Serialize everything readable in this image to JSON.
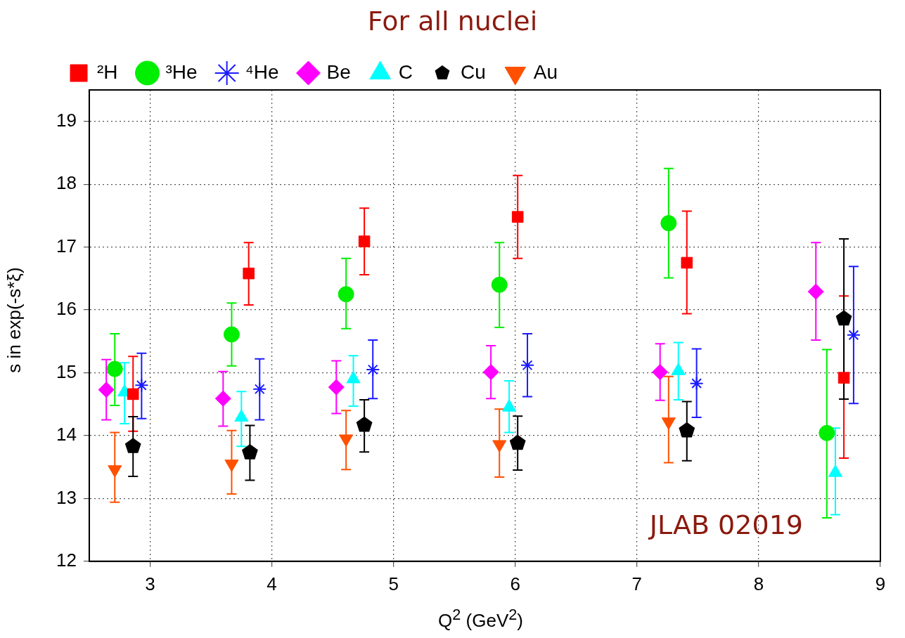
{
  "chart_data": {
    "type": "scatter",
    "title": "For all nuclei",
    "xlabel": "Q$^{2}$ (GeV$^{2}$)",
    "ylabel": "s in exp(-s*ξ)",
    "xlim": [
      2.5,
      9
    ],
    "ylim": [
      12,
      19.5
    ],
    "xticks": [
      3,
      4,
      5,
      6,
      7,
      8,
      9
    ],
    "yticks": [
      12,
      13,
      14,
      15,
      16,
      17,
      18,
      19
    ],
    "grid": true,
    "legend": "top left",
    "annotations": [
      "JLAB 02019"
    ],
    "series": [
      {
        "name": "²H",
        "color": "#ff0000",
        "marker": "square",
        "x": [
          2.86,
          3.81,
          4.76,
          6.02,
          7.41,
          8.7
        ],
        "values": [
          14.66,
          16.58,
          17.09,
          17.48,
          16.75,
          14.92
        ],
        "errors": [
          [
            14.07,
            15.26
          ],
          [
            16.08,
            17.07
          ],
          [
            16.56,
            17.62
          ],
          [
            16.82,
            18.14
          ],
          [
            15.94,
            17.57
          ],
          [
            13.64,
            16.22
          ]
        ]
      },
      {
        "name": "³He",
        "color": "#00ee00",
        "marker": "circle",
        "x": [
          2.71,
          3.67,
          4.61,
          5.87,
          7.26,
          8.56
        ],
        "values": [
          15.06,
          15.61,
          16.25,
          16.4,
          17.38,
          14.04
        ],
        "errors": [
          [
            14.48,
            15.62
          ],
          [
            15.11,
            16.11
          ],
          [
            15.7,
            16.82
          ],
          [
            15.72,
            17.07
          ],
          [
            16.51,
            18.25
          ],
          [
            12.69,
            15.37
          ]
        ]
      },
      {
        "name": "⁴He",
        "color": "#1a1aff",
        "marker": "cross",
        "x": [
          2.93,
          3.9,
          4.83,
          6.1,
          7.49,
          8.78
        ],
        "values": [
          14.8,
          14.74,
          15.05,
          15.12,
          14.83,
          15.6
        ],
        "errors": [
          [
            14.27,
            15.31
          ],
          [
            14.25,
            15.22
          ],
          [
            14.59,
            15.52
          ],
          [
            14.62,
            15.62
          ],
          [
            14.29,
            15.38
          ],
          [
            14.51,
            16.69
          ]
        ]
      },
      {
        "name": "Be",
        "color": "#ff00ff",
        "marker": "diamond",
        "x": [
          2.64,
          3.6,
          4.53,
          5.8,
          7.19,
          8.47
        ],
        "values": [
          14.73,
          14.59,
          14.77,
          15.01,
          15.01,
          16.29
        ],
        "errors": [
          [
            14.25,
            15.21
          ],
          [
            14.15,
            15.02
          ],
          [
            14.35,
            15.19
          ],
          [
            14.59,
            15.43
          ],
          [
            14.56,
            15.46
          ],
          [
            15.52,
            17.07
          ]
        ]
      },
      {
        "name": "C",
        "color": "#00ffff",
        "marker": "triangle",
        "x": [
          2.79,
          3.75,
          4.67,
          5.95,
          7.34,
          8.63
        ],
        "values": [
          14.69,
          14.29,
          14.9,
          14.45,
          15.03,
          13.41
        ],
        "errors": [
          [
            14.19,
            15.16
          ],
          [
            13.83,
            14.7
          ],
          [
            14.47,
            15.27
          ],
          [
            14.05,
            14.87
          ],
          [
            14.57,
            15.48
          ],
          [
            12.74,
            14.12
          ]
        ]
      },
      {
        "name": "Cu",
        "color": "#000000",
        "x": [
          2.86,
          3.82,
          4.76,
          6.02,
          7.41,
          8.7
        ],
        "values": [
          13.83,
          13.73,
          14.17,
          13.88,
          14.08,
          15.86
        ],
        "errors": [
          [
            13.35,
            14.3
          ],
          [
            13.29,
            14.16
          ],
          [
            13.74,
            14.57
          ],
          [
            13.45,
            14.31
          ],
          [
            13.6,
            14.54
          ],
          [
            14.58,
            17.13
          ]
        ]
      },
      {
        "name": "Au",
        "color": "#ff5000",
        "marker": "triangle-down",
        "x": [
          2.71,
          3.67,
          4.61,
          5.87,
          7.26
        ],
        "values": [
          13.46,
          13.55,
          13.95,
          13.86,
          14.22
        ],
        "errors": [
          [
            12.94,
            14.05
          ],
          [
            13.07,
            14.08
          ],
          [
            13.46,
            14.4
          ],
          [
            13.34,
            14.42
          ],
          [
            13.57,
            14.94
          ]
        ]
      }
    ]
  }
}
